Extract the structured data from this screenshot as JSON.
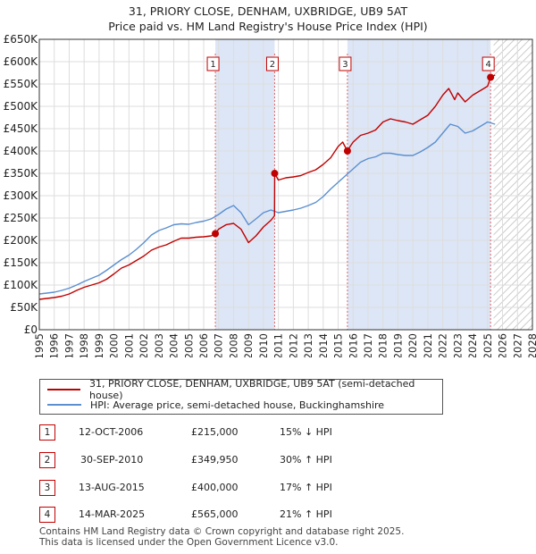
{
  "title": {
    "line1": "31, PRIORY CLOSE, DENHAM, UXBRIDGE, UB9 5AT",
    "line2": "Price paid vs. HM Land Registry's House Price Index (HPI)"
  },
  "colors": {
    "property": "#c00000",
    "hpi": "#5b8fd0",
    "shade": "#dde6f6",
    "vline": "#e06666",
    "grid": "#dddddd"
  },
  "chart_data": {
    "type": "line",
    "title": "31, PRIORY CLOSE, DENHAM, UXBRIDGE, UB9 5AT — Price paid vs. HM Land Registry's House Price Index (HPI)",
    "xlabel": "",
    "ylabel": "",
    "xlim": [
      1995,
      2028
    ],
    "ylim": [
      0,
      650000
    ],
    "y_ticks": [
      0,
      50000,
      100000,
      150000,
      200000,
      250000,
      300000,
      350000,
      400000,
      450000,
      500000,
      550000,
      600000,
      650000
    ],
    "y_tick_labels": [
      "£0",
      "£50K",
      "£100K",
      "£150K",
      "£200K",
      "£250K",
      "£300K",
      "£350K",
      "£400K",
      "£450K",
      "£500K",
      "£550K",
      "£600K",
      "£650K"
    ],
    "x_ticks": [
      1995,
      1996,
      1997,
      1998,
      1999,
      2000,
      2001,
      2002,
      2003,
      2004,
      2005,
      2006,
      2007,
      2008,
      2009,
      2010,
      2011,
      2012,
      2013,
      2014,
      2015,
      2016,
      2017,
      2018,
      2019,
      2020,
      2021,
      2022,
      2023,
      2024,
      2025,
      2026,
      2027,
      2028
    ],
    "grid": true,
    "forecast_hatch_from": 2025.4,
    "shaded_ranges": [
      [
        2006.78,
        2010.75
      ],
      [
        2015.62,
        2025.2
      ]
    ],
    "series": [
      {
        "name": "31, PRIORY CLOSE, DENHAM, UXBRIDGE, UB9 5AT (semi-detached house)",
        "color": "#c00000",
        "x": [
          1995.0,
          1995.5,
          1996.0,
          1996.5,
          1997.0,
          1997.5,
          1998.0,
          1998.5,
          1999.0,
          1999.5,
          2000.0,
          2000.5,
          2001.0,
          2001.5,
          2002.0,
          2002.5,
          2003.0,
          2003.5,
          2004.0,
          2004.5,
          2005.0,
          2005.5,
          2006.0,
          2006.5,
          2006.78,
          2007.0,
          2007.5,
          2008.0,
          2008.5,
          2009.0,
          2009.5,
          2010.0,
          2010.5,
          2010.74,
          2010.75,
          2011.0,
          2011.5,
          2012.0,
          2012.5,
          2013.0,
          2013.5,
          2014.0,
          2014.5,
          2015.0,
          2015.3,
          2015.62,
          2015.8,
          2016.0,
          2016.5,
          2017.0,
          2017.5,
          2018.0,
          2018.5,
          2019.0,
          2019.5,
          2020.0,
          2020.5,
          2021.0,
          2021.5,
          2022.0,
          2022.4,
          2022.8,
          2023.0,
          2023.5,
          2024.0,
          2024.5,
          2025.0,
          2025.2,
          2025.5
        ],
        "values": [
          68000,
          70000,
          72000,
          75000,
          80000,
          88000,
          95000,
          100000,
          105000,
          113000,
          125000,
          138000,
          145000,
          155000,
          165000,
          178000,
          185000,
          190000,
          198000,
          205000,
          205000,
          207000,
          208000,
          210000,
          215000,
          225000,
          235000,
          238000,
          225000,
          195000,
          210000,
          230000,
          245000,
          255000,
          349950,
          335000,
          340000,
          342000,
          345000,
          352000,
          358000,
          370000,
          385000,
          410000,
          420000,
          400000,
          410000,
          420000,
          435000,
          440000,
          447000,
          465000,
          472000,
          468000,
          465000,
          460000,
          470000,
          480000,
          500000,
          525000,
          540000,
          515000,
          530000,
          510000,
          525000,
          535000,
          545000,
          565000,
          570000
        ]
      },
      {
        "name": "HPI: Average price, semi-detached house, Buckinghamshire",
        "color": "#5b8fd0",
        "x": [
          1995.0,
          1995.5,
          1996.0,
          1996.5,
          1997.0,
          1997.5,
          1998.0,
          1998.5,
          1999.0,
          1999.5,
          2000.0,
          2000.5,
          2001.0,
          2001.5,
          2002.0,
          2002.5,
          2003.0,
          2003.5,
          2004.0,
          2004.5,
          2005.0,
          2005.5,
          2006.0,
          2006.5,
          2007.0,
          2007.5,
          2008.0,
          2008.5,
          2009.0,
          2009.5,
          2010.0,
          2010.5,
          2011.0,
          2011.5,
          2012.0,
          2012.5,
          2013.0,
          2013.5,
          2014.0,
          2014.5,
          2015.0,
          2015.5,
          2016.0,
          2016.5,
          2017.0,
          2017.5,
          2018.0,
          2018.5,
          2019.0,
          2019.5,
          2020.0,
          2020.5,
          2021.0,
          2021.5,
          2022.0,
          2022.5,
          2023.0,
          2023.5,
          2024.0,
          2024.5,
          2025.0,
          2025.5
        ],
        "values": [
          80000,
          82000,
          84000,
          88000,
          93000,
          100000,
          108000,
          115000,
          122000,
          133000,
          145000,
          157000,
          167000,
          180000,
          195000,
          212000,
          222000,
          228000,
          235000,
          237000,
          236000,
          240000,
          243000,
          248000,
          258000,
          270000,
          278000,
          262000,
          235000,
          248000,
          262000,
          268000,
          262000,
          265000,
          268000,
          272000,
          278000,
          285000,
          298000,
          315000,
          330000,
          345000,
          360000,
          375000,
          383000,
          387000,
          395000,
          395000,
          392000,
          390000,
          390000,
          398000,
          408000,
          420000,
          440000,
          460000,
          455000,
          440000,
          445000,
          455000,
          465000,
          460000
        ]
      }
    ],
    "markers": [
      {
        "id": "1",
        "x": 2006.78,
        "value": 215000
      },
      {
        "id": "2",
        "x": 2010.75,
        "value": 349950
      },
      {
        "id": "3",
        "x": 2015.62,
        "value": 400000
      },
      {
        "id": "4",
        "x": 2025.2,
        "value": 565000
      }
    ]
  },
  "legend": {
    "property_label": "31, PRIORY CLOSE, DENHAM, UXBRIDGE, UB9 5AT (semi-detached house)",
    "hpi_label": "HPI: Average price, semi-detached house, Buckinghamshire"
  },
  "sales": [
    {
      "num": "1",
      "date": "12-OCT-2006",
      "price": "£215,000",
      "hpi": "15% ↓ HPI"
    },
    {
      "num": "2",
      "date": "30-SEP-2010",
      "price": "£349,950",
      "hpi": "30% ↑ HPI"
    },
    {
      "num": "3",
      "date": "13-AUG-2015",
      "price": "£400,000",
      "hpi": "17% ↑ HPI"
    },
    {
      "num": "4",
      "date": "14-MAR-2025",
      "price": "£565,000",
      "hpi": "21% ↑ HPI"
    }
  ],
  "footer": {
    "line1": "Contains HM Land Registry data © Crown copyright and database right 2025.",
    "line2": "This data is licensed under the Open Government Licence v3.0."
  }
}
